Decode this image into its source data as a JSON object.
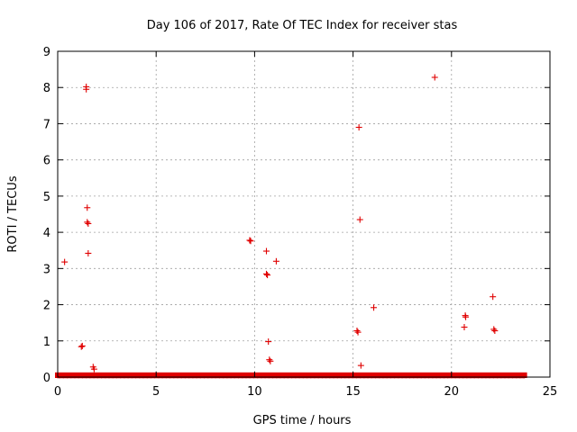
{
  "colors": {
    "marker": "#e00000",
    "grid": "#a0a0a0",
    "axis": "#000000",
    "background": "#ffffff"
  },
  "chart_data": {
    "type": "scatter",
    "title": "Day 106 of 2017, Rate Of TEC Index for receiver stas",
    "xlabel": "GPS time / hours",
    "ylabel": "ROTI / TECUs",
    "xlim": [
      0,
      25
    ],
    "ylim": [
      0,
      9
    ],
    "xticks": [
      0,
      5,
      10,
      15,
      20,
      25
    ],
    "yticks": [
      0,
      1,
      2,
      3,
      4,
      5,
      6,
      7,
      8,
      9
    ],
    "grid": true,
    "marker": "plus",
    "baseline": {
      "x_start": 0.0,
      "x_end": 23.7,
      "y_min": 0.0,
      "y_max": 0.08,
      "description": "dense cluster of near-zero ROTI values across the full time range"
    },
    "series": [
      {
        "name": "stas",
        "points": [
          [
            0.35,
            3.18
          ],
          [
            1.2,
            0.84
          ],
          [
            1.25,
            0.86
          ],
          [
            1.45,
            8.02
          ],
          [
            1.45,
            7.95
          ],
          [
            1.5,
            4.68
          ],
          [
            1.5,
            4.28
          ],
          [
            1.55,
            4.24
          ],
          [
            1.55,
            3.42
          ],
          [
            1.8,
            0.28
          ],
          [
            1.85,
            0.22
          ],
          [
            9.75,
            3.78
          ],
          [
            9.8,
            3.76
          ],
          [
            10.6,
            3.48
          ],
          [
            10.6,
            2.85
          ],
          [
            10.65,
            2.82
          ],
          [
            11.1,
            3.2
          ],
          [
            10.7,
            0.98
          ],
          [
            10.75,
            0.48
          ],
          [
            10.8,
            0.44
          ],
          [
            15.3,
            6.9
          ],
          [
            15.35,
            4.35
          ],
          [
            15.2,
            1.28
          ],
          [
            15.25,
            1.24
          ],
          [
            15.4,
            0.32
          ],
          [
            16.05,
            1.92
          ],
          [
            19.15,
            8.28
          ],
          [
            20.7,
            1.7
          ],
          [
            20.72,
            1.66
          ],
          [
            20.65,
            1.38
          ],
          [
            22.1,
            2.22
          ],
          [
            22.15,
            1.32
          ],
          [
            22.2,
            1.28
          ]
        ]
      }
    ]
  }
}
